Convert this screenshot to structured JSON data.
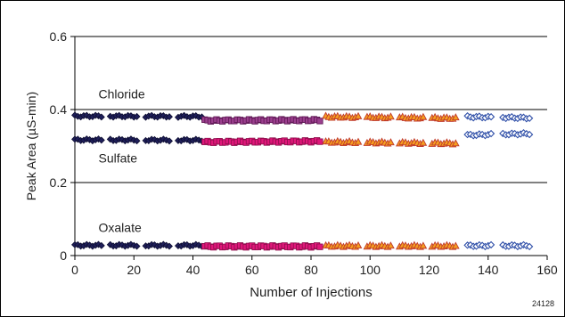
{
  "chart_data": {
    "type": "scatter",
    "title": "",
    "xlabel": "Number of Injections",
    "ylabel": "Peak Area (µS-min)",
    "xlim": [
      0,
      160
    ],
    "ylim": [
      0,
      0.6
    ],
    "xticks": [
      "0",
      "20",
      "40",
      "60",
      "80",
      "100",
      "120",
      "140",
      "160"
    ],
    "yticks": [
      "0",
      "0.2",
      "0.4",
      "0.6"
    ],
    "grid_y": [
      0.2,
      0.4,
      0.6
    ],
    "annotations": [
      {
        "text": "Chloride",
        "x": 8,
        "y": 0.43
      },
      {
        "text": "Sulfate",
        "x": 8,
        "y": 0.255
      },
      {
        "text": "Oxalate",
        "x": 8,
        "y": 0.065
      }
    ],
    "figure_id": "24128",
    "series": [
      {
        "name": "Chloride",
        "segments": [
          {
            "x_start": 0,
            "x_end": 43,
            "gaps": [
              [
                10,
                11
              ],
              [
                22,
                23
              ],
              [
                33,
                34
              ]
            ],
            "y_start": 0.382,
            "y_end": 0.381,
            "marker": "diamond",
            "fill": "#1f1f5a",
            "stroke": "#0d0d30"
          },
          {
            "x_start": 44,
            "x_end": 83,
            "gaps": [],
            "y_start": 0.37,
            "y_end": 0.371,
            "marker": "square",
            "fill": "#9b3f8e",
            "stroke": "#5a1550"
          },
          {
            "x_start": 85,
            "x_end": 129,
            "gaps": [
              [
                97,
                98
              ],
              [
                108,
                109
              ],
              [
                119,
                120
              ]
            ],
            "y_start": 0.38,
            "y_end": 0.376,
            "marker": "triangle",
            "fill": "#f5a020",
            "stroke": "#c0392b"
          },
          {
            "x_start": 133,
            "x_end": 154,
            "gaps": [
              [
                142,
                144
              ]
            ],
            "y_start": 0.38,
            "y_end": 0.377,
            "marker": "diamond-open",
            "fill": "#ffffff",
            "stroke": "#2f4fa8"
          }
        ]
      },
      {
        "name": "Sulfate",
        "segments": [
          {
            "x_start": 0,
            "x_end": 43,
            "gaps": [
              [
                10,
                11
              ],
              [
                22,
                23
              ],
              [
                33,
                34
              ]
            ],
            "y_start": 0.317,
            "y_end": 0.316,
            "marker": "diamond",
            "fill": "#1f1f5a",
            "stroke": "#0d0d30"
          },
          {
            "x_start": 44,
            "x_end": 83,
            "gaps": [],
            "y_start": 0.311,
            "y_end": 0.313,
            "marker": "square",
            "fill": "#e0177a",
            "stroke": "#8a0e4a"
          },
          {
            "x_start": 85,
            "x_end": 129,
            "gaps": [
              [
                97,
                98
              ],
              [
                108,
                109
              ],
              [
                119,
                120
              ]
            ],
            "y_start": 0.311,
            "y_end": 0.307,
            "marker": "triangle",
            "fill": "#f5a020",
            "stroke": "#c0392b"
          },
          {
            "x_start": 133,
            "x_end": 154,
            "gaps": [
              [
                142,
                144
              ]
            ],
            "y_start": 0.33,
            "y_end": 0.334,
            "marker": "diamond-open",
            "fill": "#ffffff",
            "stroke": "#2f4fa8"
          }
        ]
      },
      {
        "name": "Oxalate",
        "segments": [
          {
            "x_start": 0,
            "x_end": 43,
            "gaps": [
              [
                10,
                11
              ],
              [
                22,
                23
              ],
              [
                33,
                34
              ]
            ],
            "y_start": 0.028,
            "y_end": 0.028,
            "marker": "diamond",
            "fill": "#1f1f5a",
            "stroke": "#0d0d30"
          },
          {
            "x_start": 44,
            "x_end": 83,
            "gaps": [],
            "y_start": 0.025,
            "y_end": 0.025,
            "marker": "square",
            "fill": "#e0177a",
            "stroke": "#8a0e4a"
          },
          {
            "x_start": 85,
            "x_end": 129,
            "gaps": [
              [
                97,
                98
              ],
              [
                108,
                109
              ],
              [
                119,
                120
              ]
            ],
            "y_start": 0.026,
            "y_end": 0.026,
            "marker": "triangle",
            "fill": "#f5a020",
            "stroke": "#c0392b"
          },
          {
            "x_start": 133,
            "x_end": 154,
            "gaps": [
              [
                142,
                144
              ]
            ],
            "y_start": 0.027,
            "y_end": 0.027,
            "marker": "diamond-open",
            "fill": "#ffffff",
            "stroke": "#2f4fa8"
          }
        ]
      }
    ]
  }
}
